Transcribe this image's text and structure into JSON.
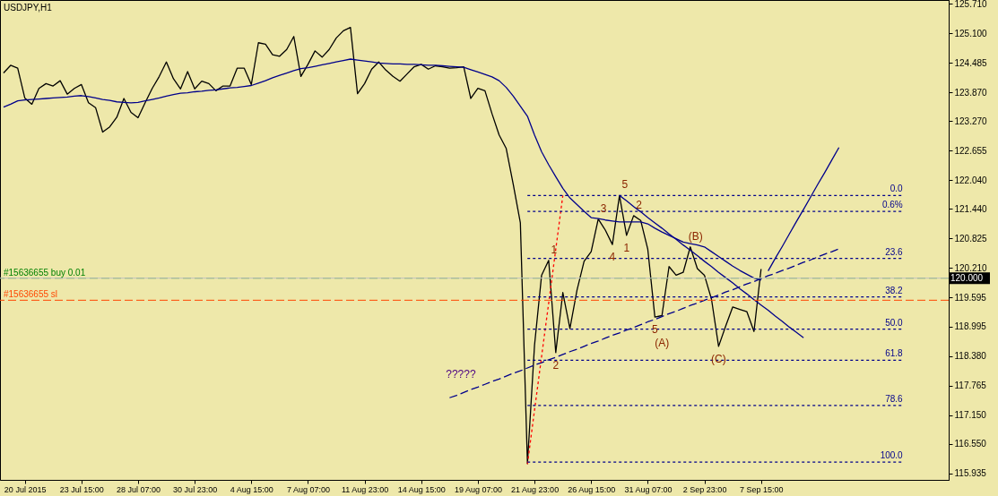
{
  "chart_data": {
    "type": "line",
    "title": "USDJPY,H1",
    "categories": [
      null,
      null,
      null,
      "20 Jul 2015",
      null,
      null,
      null,
      null,
      null,
      null,
      null,
      "23 Jul 15:00",
      null,
      null,
      null,
      null,
      null,
      null,
      null,
      "28 Jul 07:00",
      null,
      null,
      null,
      null,
      null,
      null,
      null,
      "30 Jul 23:00",
      null,
      null,
      null,
      null,
      null,
      null,
      null,
      "4 Aug 15:00",
      null,
      null,
      null,
      null,
      null,
      null,
      null,
      "7 Aug 07:00",
      null,
      null,
      null,
      null,
      null,
      null,
      null,
      "11 Aug 23:00",
      null,
      null,
      null,
      null,
      null,
      null,
      null,
      "14 Aug 15:00",
      null,
      null,
      null,
      null,
      null,
      null,
      null,
      "19 Aug 07:00",
      null,
      null,
      null,
      null,
      null,
      null,
      null,
      "21 Aug 23:00",
      null,
      null,
      null,
      null,
      null,
      null,
      null,
      "26 Aug 15:00",
      null,
      null,
      null,
      null,
      null,
      null,
      null,
      "31 Aug 07:00",
      null,
      null,
      null,
      null,
      null,
      null,
      null,
      "2 Sep 23:00",
      null,
      null,
      null,
      null,
      null,
      null,
      null,
      "7 Sep 15:00",
      null,
      null,
      null,
      null,
      null,
      null,
      null,
      null,
      null,
      null,
      null,
      null,
      null,
      null,
      null,
      null,
      null,
      null,
      null,
      null,
      null,
      null,
      null,
      null,
      null,
      null
    ],
    "ylim": [
      115.8,
      125.79
    ],
    "yticks": [
      {
        "value": 125.71,
        "label": "125.710"
      },
      {
        "value": 125.1,
        "label": "125.100"
      },
      {
        "value": 124.485,
        "label": "124.485"
      },
      {
        "value": 123.87,
        "label": "123.870"
      },
      {
        "value": 123.27,
        "label": "123.270"
      },
      {
        "value": 122.655,
        "label": "122.655"
      },
      {
        "value": 122.04,
        "label": "122.040"
      },
      {
        "value": 121.44,
        "label": "121.440"
      },
      {
        "value": 120.825,
        "label": "120.825"
      },
      {
        "value": 120.21,
        "label": "120.210"
      },
      {
        "value": 119.595,
        "label": "119.595"
      },
      {
        "value": 118.995,
        "label": "118.995"
      },
      {
        "value": 118.38,
        "label": "118.380"
      },
      {
        "value": 117.765,
        "label": "117.765"
      },
      {
        "value": 117.15,
        "label": "117.150"
      },
      {
        "value": 116.55,
        "label": "116.550"
      },
      {
        "value": 115.935,
        "label": "115.935"
      }
    ],
    "series": [
      {
        "color": "#000000",
        "values": [
          124.27,
          124.43,
          124.37,
          123.75,
          123.62,
          123.95,
          124.05,
          124.0,
          124.11,
          123.83,
          123.95,
          124.03,
          123.65,
          123.55,
          123.04,
          123.15,
          123.35,
          123.74,
          123.45,
          123.34,
          123.65,
          123.95,
          124.2,
          124.5,
          124.15,
          123.94,
          124.3,
          123.94,
          124.1,
          124.05,
          123.9,
          124.0,
          124.0,
          124.37,
          124.37,
          124.03,
          124.9,
          124.87,
          124.65,
          124.62,
          124.76,
          125.03,
          124.2,
          124.45,
          124.73,
          124.6,
          124.76,
          125.0,
          125.15,
          125.22,
          123.84,
          124.05,
          124.35,
          124.5,
          124.33,
          124.2,
          124.1,
          124.25,
          124.4,
          124.45,
          124.35,
          124.42,
          124.4,
          124.37,
          124.38,
          124.4,
          123.74,
          123.95,
          123.9,
          123.42,
          122.98,
          122.7,
          121.95,
          121.15,
          116.14,
          118.6,
          120.06,
          120.37,
          118.45,
          119.7,
          118.95,
          119.75,
          120.35,
          120.55,
          121.23,
          121.0,
          120.7,
          121.72,
          120.89,
          121.3,
          121.2,
          120.6,
          119.19,
          119.22,
          120.24,
          120.06,
          120.12,
          120.65,
          120.2,
          120.06,
          119.56,
          118.58,
          119.0,
          119.4,
          119.35,
          119.3,
          118.89,
          120.19,
          null,
          null,
          null,
          null,
          null,
          null,
          null,
          null,
          null,
          null,
          null,
          null,
          null,
          null,
          null,
          null,
          null,
          null,
          null,
          null,
          null,
          null,
          null,
          null,
          null,
          null
        ]
      },
      {
        "color": "#00008b",
        "values": [
          123.56,
          123.62,
          123.69,
          123.71,
          123.72,
          123.73,
          123.74,
          123.75,
          123.76,
          123.77,
          123.79,
          123.8,
          123.78,
          123.75,
          123.72,
          123.7,
          123.67,
          123.66,
          123.65,
          123.66,
          123.69,
          123.72,
          123.75,
          123.79,
          123.82,
          123.85,
          123.86,
          123.88,
          123.89,
          123.91,
          123.92,
          123.94,
          123.96,
          123.97,
          123.99,
          124.01,
          124.06,
          124.11,
          124.17,
          124.22,
          124.27,
          124.32,
          124.36,
          124.38,
          124.41,
          124.44,
          124.47,
          124.5,
          124.53,
          124.56,
          124.54,
          124.52,
          124.5,
          124.48,
          124.47,
          124.46,
          124.46,
          124.45,
          124.45,
          124.44,
          124.43,
          124.43,
          124.42,
          124.41,
          124.4,
          124.39,
          124.34,
          124.29,
          124.24,
          124.19,
          124.11,
          123.97,
          123.79,
          123.58,
          123.37,
          122.98,
          122.63,
          122.36,
          122.11,
          121.87,
          121.67,
          121.53,
          121.39,
          121.26,
          121.24,
          121.21,
          121.19,
          121.17,
          121.17,
          121.17,
          121.17,
          121.13,
          121.04,
          120.96,
          120.89,
          120.82,
          120.75,
          120.72,
          120.69,
          120.65,
          120.55,
          120.45,
          120.35,
          120.25,
          120.16,
          120.08,
          120.0,
          119.96,
          null,
          null,
          null,
          null,
          null,
          null,
          null,
          null,
          null,
          null,
          null,
          null,
          null,
          null,
          null,
          null,
          null,
          null,
          null,
          null,
          null,
          null,
          null,
          null,
          null,
          null
        ]
      },
      {
        "color": "#00008b",
        "line_style": "dashed",
        "values": [
          null,
          null,
          null,
          null,
          null,
          null,
          null,
          null,
          null,
          null,
          null,
          null,
          null,
          null,
          null,
          null,
          null,
          null,
          null,
          null,
          null,
          null,
          null,
          null,
          null,
          null,
          null,
          null,
          null,
          null,
          null,
          null,
          null,
          null,
          null,
          null,
          null,
          null,
          null,
          null,
          null,
          null,
          null,
          null,
          null,
          null,
          null,
          null,
          null,
          null,
          null,
          null,
          null,
          null,
          null,
          null,
          null,
          null,
          null,
          null,
          null,
          null,
          null,
          117.51,
          117.56,
          117.62,
          117.68,
          117.73,
          117.79,
          117.85,
          117.9,
          117.96,
          118.02,
          118.07,
          118.13,
          118.19,
          118.24,
          118.3,
          118.35,
          118.41,
          118.47,
          118.52,
          118.58,
          118.64,
          118.69,
          118.75,
          118.81,
          118.86,
          118.92,
          118.97,
          119.03,
          119.09,
          119.14,
          119.2,
          119.26,
          119.31,
          119.37,
          119.43,
          119.48,
          119.54,
          119.59,
          119.65,
          119.71,
          119.76,
          119.82,
          119.88,
          119.93,
          119.99,
          120.05,
          120.1,
          120.16,
          120.21,
          120.27,
          120.33,
          120.38,
          120.44,
          120.5,
          120.55,
          120.61,
          null,
          null,
          null,
          null,
          null,
          null,
          null,
          null,
          null,
          null,
          null,
          null,
          null,
          null,
          null
        ]
      },
      {
        "color": "#00008b",
        "values": [
          null,
          null,
          null,
          null,
          null,
          null,
          null,
          null,
          null,
          null,
          null,
          null,
          null,
          null,
          null,
          null,
          null,
          null,
          null,
          null,
          null,
          null,
          null,
          null,
          null,
          null,
          null,
          null,
          null,
          null,
          null,
          null,
          null,
          null,
          null,
          null,
          null,
          null,
          null,
          null,
          null,
          null,
          null,
          null,
          null,
          null,
          null,
          null,
          null,
          null,
          null,
          null,
          null,
          null,
          null,
          null,
          null,
          null,
          null,
          null,
          null,
          null,
          null,
          null,
          null,
          null,
          null,
          null,
          null,
          null,
          null,
          null,
          null,
          null,
          null,
          null,
          null,
          null,
          null,
          null,
          null,
          null,
          null,
          null,
          null,
          null,
          null,
          121.72,
          121.61,
          121.49,
          121.38,
          121.26,
          121.15,
          121.04,
          120.92,
          120.81,
          120.69,
          120.58,
          120.47,
          120.35,
          120.24,
          120.12,
          120.01,
          119.9,
          119.78,
          119.67,
          119.55,
          119.44,
          119.33,
          119.21,
          119.1,
          118.98,
          118.87,
          118.76,
          null,
          null,
          null,
          null,
          null,
          null,
          null,
          null,
          null,
          null,
          null,
          null,
          null,
          null,
          null,
          null,
          null,
          null,
          null,
          null
        ]
      },
      {
        "color": "#00008b",
        "values": [
          null,
          null,
          null,
          null,
          null,
          null,
          null,
          null,
          null,
          null,
          null,
          null,
          null,
          null,
          null,
          null,
          null,
          null,
          null,
          null,
          null,
          null,
          null,
          null,
          null,
          null,
          null,
          null,
          null,
          null,
          null,
          null,
          null,
          null,
          null,
          null,
          null,
          null,
          null,
          null,
          null,
          null,
          null,
          null,
          null,
          null,
          null,
          null,
          null,
          null,
          null,
          null,
          null,
          null,
          null,
          null,
          null,
          null,
          null,
          null,
          null,
          null,
          null,
          null,
          null,
          null,
          null,
          null,
          null,
          null,
          null,
          null,
          null,
          null,
          null,
          null,
          null,
          null,
          null,
          null,
          null,
          null,
          null,
          null,
          null,
          null,
          null,
          null,
          null,
          null,
          null,
          null,
          null,
          null,
          null,
          null,
          null,
          null,
          null,
          null,
          null,
          null,
          null,
          null,
          null,
          null,
          null,
          null,
          120.15,
          120.41,
          120.66,
          120.92,
          121.18,
          121.43,
          121.69,
          121.95,
          122.2,
          122.46,
          122.72,
          null,
          null,
          null,
          null,
          null,
          null,
          null,
          null,
          null,
          null,
          null,
          null,
          null,
          null,
          null
        ]
      },
      {
        "color": "#ff0000",
        "line_style": "dotted",
        "values": [
          null,
          null,
          null,
          null,
          null,
          null,
          null,
          null,
          null,
          null,
          null,
          null,
          null,
          null,
          null,
          null,
          null,
          null,
          null,
          null,
          null,
          null,
          null,
          null,
          null,
          null,
          null,
          null,
          null,
          null,
          null,
          null,
          null,
          null,
          null,
          null,
          null,
          null,
          null,
          null,
          null,
          null,
          null,
          null,
          null,
          null,
          null,
          null,
          null,
          null,
          null,
          null,
          null,
          null,
          null,
          null,
          null,
          null,
          null,
          null,
          null,
          null,
          null,
          null,
          null,
          null,
          null,
          null,
          null,
          null,
          null,
          null,
          null,
          null,
          116.13,
          117.25,
          118.37,
          119.48,
          120.6,
          121.72,
          null,
          null,
          null,
          null,
          null,
          null,
          null,
          null,
          null,
          null,
          null,
          null,
          null,
          null,
          null,
          null,
          null,
          null,
          null,
          null,
          null,
          null,
          null,
          null,
          null,
          null,
          null,
          null,
          null,
          null,
          null,
          null,
          null,
          null,
          null,
          null,
          null,
          null,
          null,
          null,
          null,
          null,
          null,
          null,
          null,
          null,
          null,
          null,
          null,
          null,
          null,
          null,
          null,
          null
        ]
      },
      {
        "name": "0.0",
        "color": "#00008b",
        "line_style": "dotted",
        "values": [
          null,
          null,
          null,
          null,
          null,
          null,
          null,
          null,
          null,
          null,
          null,
          null,
          null,
          null,
          null,
          null,
          null,
          null,
          null,
          null,
          null,
          null,
          null,
          null,
          null,
          null,
          null,
          null,
          null,
          null,
          null,
          null,
          null,
          null,
          null,
          null,
          null,
          null,
          null,
          null,
          null,
          null,
          null,
          null,
          null,
          null,
          null,
          null,
          null,
          null,
          null,
          null,
          null,
          null,
          null,
          null,
          null,
          null,
          null,
          null,
          null,
          null,
          null,
          null,
          null,
          null,
          null,
          null,
          null,
          null,
          null,
          null,
          null,
          null,
          121.72,
          121.72,
          121.72,
          121.72,
          121.72,
          121.72,
          121.72,
          121.72,
          121.72,
          121.72,
          121.72,
          121.72,
          121.72,
          121.72,
          121.72,
          121.72,
          121.72,
          121.72,
          121.72,
          121.72,
          121.72,
          121.72,
          121.72,
          121.72,
          121.72,
          121.72,
          121.72,
          121.72,
          121.72,
          121.72,
          121.72,
          121.72,
          121.72,
          121.72,
          121.72,
          121.72,
          121.72,
          121.72,
          121.72,
          121.72,
          121.72,
          121.72,
          121.72,
          121.72,
          121.72,
          121.72,
          121.72,
          121.72,
          121.72,
          121.72,
          121.72,
          121.72,
          121.72,
          121.72,
          null,
          null,
          null,
          null,
          null,
          null
        ]
      },
      {
        "name": "0.6%",
        "color": "#00008b",
        "line_style": "dotted",
        "values": [
          null,
          null,
          null,
          null,
          null,
          null,
          null,
          null,
          null,
          null,
          null,
          null,
          null,
          null,
          null,
          null,
          null,
          null,
          null,
          null,
          null,
          null,
          null,
          null,
          null,
          null,
          null,
          null,
          null,
          null,
          null,
          null,
          null,
          null,
          null,
          null,
          null,
          null,
          null,
          null,
          null,
          null,
          null,
          null,
          null,
          null,
          null,
          null,
          null,
          null,
          null,
          null,
          null,
          null,
          null,
          null,
          null,
          null,
          null,
          null,
          null,
          null,
          null,
          null,
          null,
          null,
          null,
          null,
          null,
          null,
          null,
          null,
          null,
          null,
          121.39,
          121.39,
          121.39,
          121.39,
          121.39,
          121.39,
          121.39,
          121.39,
          121.39,
          121.39,
          121.39,
          121.39,
          121.39,
          121.39,
          121.39,
          121.39,
          121.39,
          121.39,
          121.39,
          121.39,
          121.39,
          121.39,
          121.39,
          121.39,
          121.39,
          121.39,
          121.39,
          121.39,
          121.39,
          121.39,
          121.39,
          121.39,
          121.39,
          121.39,
          121.39,
          121.39,
          121.39,
          121.39,
          121.39,
          121.39,
          121.39,
          121.39,
          121.39,
          121.39,
          121.39,
          121.39,
          121.39,
          121.39,
          121.39,
          121.39,
          121.39,
          121.39,
          121.39,
          121.39,
          null,
          null,
          null,
          null,
          null,
          null
        ]
      },
      {
        "name": "23.6",
        "color": "#00008b",
        "line_style": "dotted",
        "values": [
          null,
          null,
          null,
          null,
          null,
          null,
          null,
          null,
          null,
          null,
          null,
          null,
          null,
          null,
          null,
          null,
          null,
          null,
          null,
          null,
          null,
          null,
          null,
          null,
          null,
          null,
          null,
          null,
          null,
          null,
          null,
          null,
          null,
          null,
          null,
          null,
          null,
          null,
          null,
          null,
          null,
          null,
          null,
          null,
          null,
          null,
          null,
          null,
          null,
          null,
          null,
          null,
          null,
          null,
          null,
          null,
          null,
          null,
          null,
          null,
          null,
          null,
          null,
          null,
          null,
          null,
          null,
          null,
          null,
          null,
          null,
          null,
          null,
          null,
          120.41,
          120.41,
          120.41,
          120.41,
          120.41,
          120.41,
          120.41,
          120.41,
          120.41,
          120.41,
          120.41,
          120.41,
          120.41,
          120.41,
          120.41,
          120.41,
          120.41,
          120.41,
          120.41,
          120.41,
          120.41,
          120.41,
          120.41,
          120.41,
          120.41,
          120.41,
          120.41,
          120.41,
          120.41,
          120.41,
          120.41,
          120.41,
          120.41,
          120.41,
          120.41,
          120.41,
          120.41,
          120.41,
          120.41,
          120.41,
          120.41,
          120.41,
          120.41,
          120.41,
          120.41,
          120.41,
          120.41,
          120.41,
          120.41,
          120.41,
          120.41,
          120.41,
          120.41,
          120.41,
          null,
          null,
          null,
          null,
          null,
          null
        ]
      },
      {
        "name": "38.2",
        "color": "#00008b",
        "line_style": "dotted",
        "values": [
          null,
          null,
          null,
          null,
          null,
          null,
          null,
          null,
          null,
          null,
          null,
          null,
          null,
          null,
          null,
          null,
          null,
          null,
          null,
          null,
          null,
          null,
          null,
          null,
          null,
          null,
          null,
          null,
          null,
          null,
          null,
          null,
          null,
          null,
          null,
          null,
          null,
          null,
          null,
          null,
          null,
          null,
          null,
          null,
          null,
          null,
          null,
          null,
          null,
          null,
          null,
          null,
          null,
          null,
          null,
          null,
          null,
          null,
          null,
          null,
          null,
          null,
          null,
          null,
          null,
          null,
          null,
          null,
          null,
          null,
          null,
          null,
          null,
          null,
          119.61,
          119.61,
          119.61,
          119.61,
          119.61,
          119.61,
          119.61,
          119.61,
          119.61,
          119.61,
          119.61,
          119.61,
          119.61,
          119.61,
          119.61,
          119.61,
          119.61,
          119.61,
          119.61,
          119.61,
          119.61,
          119.61,
          119.61,
          119.61,
          119.61,
          119.61,
          119.61,
          119.61,
          119.61,
          119.61,
          119.61,
          119.61,
          119.61,
          119.61,
          119.61,
          119.61,
          119.61,
          119.61,
          119.61,
          119.61,
          119.61,
          119.61,
          119.61,
          119.61,
          119.61,
          119.61,
          119.61,
          119.61,
          119.61,
          119.61,
          119.61,
          119.61,
          119.61,
          119.61,
          null,
          null,
          null,
          null,
          null,
          null
        ]
      },
      {
        "name": "50.0",
        "color": "#00008b",
        "line_style": "dotted",
        "values": [
          null,
          null,
          null,
          null,
          null,
          null,
          null,
          null,
          null,
          null,
          null,
          null,
          null,
          null,
          null,
          null,
          null,
          null,
          null,
          null,
          null,
          null,
          null,
          null,
          null,
          null,
          null,
          null,
          null,
          null,
          null,
          null,
          null,
          null,
          null,
          null,
          null,
          null,
          null,
          null,
          null,
          null,
          null,
          null,
          null,
          null,
          null,
          null,
          null,
          null,
          null,
          null,
          null,
          null,
          null,
          null,
          null,
          null,
          null,
          null,
          null,
          null,
          null,
          null,
          null,
          null,
          null,
          null,
          null,
          null,
          null,
          null,
          null,
          null,
          118.94,
          118.94,
          118.94,
          118.94,
          118.94,
          118.94,
          118.94,
          118.94,
          118.94,
          118.94,
          118.94,
          118.94,
          118.94,
          118.94,
          118.94,
          118.94,
          118.94,
          118.94,
          118.94,
          118.94,
          118.94,
          118.94,
          118.94,
          118.94,
          118.94,
          118.94,
          118.94,
          118.94,
          118.94,
          118.94,
          118.94,
          118.94,
          118.94,
          118.94,
          118.94,
          118.94,
          118.94,
          118.94,
          118.94,
          118.94,
          118.94,
          118.94,
          118.94,
          118.94,
          118.94,
          118.94,
          118.94,
          118.94,
          118.94,
          118.94,
          118.94,
          118.94,
          118.94,
          118.94,
          null,
          null,
          null,
          null,
          null,
          null
        ]
      },
      {
        "name": "61.8",
        "color": "#00008b",
        "line_style": "dotted",
        "values": [
          null,
          null,
          null,
          null,
          null,
          null,
          null,
          null,
          null,
          null,
          null,
          null,
          null,
          null,
          null,
          null,
          null,
          null,
          null,
          null,
          null,
          null,
          null,
          null,
          null,
          null,
          null,
          null,
          null,
          null,
          null,
          null,
          null,
          null,
          null,
          null,
          null,
          null,
          null,
          null,
          null,
          null,
          null,
          null,
          null,
          null,
          null,
          null,
          null,
          null,
          null,
          null,
          null,
          null,
          null,
          null,
          null,
          null,
          null,
          null,
          null,
          null,
          null,
          null,
          null,
          null,
          null,
          null,
          null,
          null,
          null,
          null,
          null,
          null,
          118.29,
          118.29,
          118.29,
          118.29,
          118.29,
          118.29,
          118.29,
          118.29,
          118.29,
          118.29,
          118.29,
          118.29,
          118.29,
          118.29,
          118.29,
          118.29,
          118.29,
          118.29,
          118.29,
          118.29,
          118.29,
          118.29,
          118.29,
          118.29,
          118.29,
          118.29,
          118.29,
          118.29,
          118.29,
          118.29,
          118.29,
          118.29,
          118.29,
          118.29,
          118.29,
          118.29,
          118.29,
          118.29,
          118.29,
          118.29,
          118.29,
          118.29,
          118.29,
          118.29,
          118.29,
          118.29,
          118.29,
          118.29,
          118.29,
          118.29,
          118.29,
          118.29,
          118.29,
          118.29,
          null,
          null,
          null,
          null,
          null,
          null
        ]
      },
      {
        "name": "78.6",
        "color": "#00008b",
        "line_style": "dotted",
        "values": [
          null,
          null,
          null,
          null,
          null,
          null,
          null,
          null,
          null,
          null,
          null,
          null,
          null,
          null,
          null,
          null,
          null,
          null,
          null,
          null,
          null,
          null,
          null,
          null,
          null,
          null,
          null,
          null,
          null,
          null,
          null,
          null,
          null,
          null,
          null,
          null,
          null,
          null,
          null,
          null,
          null,
          null,
          null,
          null,
          null,
          null,
          null,
          null,
          null,
          null,
          null,
          null,
          null,
          null,
          null,
          null,
          null,
          null,
          null,
          null,
          null,
          null,
          null,
          null,
          null,
          null,
          null,
          null,
          null,
          null,
          null,
          null,
          null,
          null,
          117.35,
          117.35,
          117.35,
          117.35,
          117.35,
          117.35,
          117.35,
          117.35,
          117.35,
          117.35,
          117.35,
          117.35,
          117.35,
          117.35,
          117.35,
          117.35,
          117.35,
          117.35,
          117.35,
          117.35,
          117.35,
          117.35,
          117.35,
          117.35,
          117.35,
          117.35,
          117.35,
          117.35,
          117.35,
          117.35,
          117.35,
          117.35,
          117.35,
          117.35,
          117.35,
          117.35,
          117.35,
          117.35,
          117.35,
          117.35,
          117.35,
          117.35,
          117.35,
          117.35,
          117.35,
          117.35,
          117.35,
          117.35,
          117.35,
          117.35,
          117.35,
          117.35,
          117.35,
          117.35,
          null,
          null,
          null,
          null,
          null,
          null
        ]
      },
      {
        "name": "100.0",
        "color": "#00008b",
        "line_style": "dotted",
        "values": [
          null,
          null,
          null,
          null,
          null,
          null,
          null,
          null,
          null,
          null,
          null,
          null,
          null,
          null,
          null,
          null,
          null,
          null,
          null,
          null,
          null,
          null,
          null,
          null,
          null,
          null,
          null,
          null,
          null,
          null,
          null,
          null,
          null,
          null,
          null,
          null,
          null,
          null,
          null,
          null,
          null,
          null,
          null,
          null,
          null,
          null,
          null,
          null,
          null,
          null,
          null,
          null,
          null,
          null,
          null,
          null,
          null,
          null,
          null,
          null,
          null,
          null,
          null,
          null,
          null,
          null,
          null,
          null,
          null,
          null,
          null,
          null,
          null,
          null,
          116.17,
          116.17,
          116.17,
          116.17,
          116.17,
          116.17,
          116.17,
          116.17,
          116.17,
          116.17,
          116.17,
          116.17,
          116.17,
          116.17,
          116.17,
          116.17,
          116.17,
          116.17,
          116.17,
          116.17,
          116.17,
          116.17,
          116.17,
          116.17,
          116.17,
          116.17,
          116.17,
          116.17,
          116.17,
          116.17,
          116.17,
          116.17,
          116.17,
          116.17,
          116.17,
          116.17,
          116.17,
          116.17,
          116.17,
          116.17,
          116.17,
          116.17,
          116.17,
          116.17,
          116.17,
          116.17,
          116.17,
          116.17,
          116.17,
          116.17,
          116.17,
          116.17,
          116.17,
          116.17,
          null,
          null,
          null,
          null,
          null,
          null
        ]
      }
    ],
    "ref_lines": [
      {
        "axis": "y",
        "value": 120.0,
        "label": "#15636655 buy 0.01",
        "color": "#008000",
        "line_style": "dashed"
      },
      {
        "axis": "y",
        "value": 119.54,
        "label": "#15636655 sl",
        "color": "#ff4500",
        "line_style": "dashed"
      },
      {
        "axis": "y",
        "value": 120.0,
        "label": "120.000",
        "color": "#c0c0c0",
        "line_style": "solid"
      }
    ],
    "annotations": [
      {
        "text": "1",
        "y": 120.37
      },
      {
        "text": "2",
        "y": 118.45
      },
      {
        "text": "3",
        "y": 121.23
      },
      {
        "text": "4",
        "y": 120.7
      },
      {
        "text": "5",
        "y": 121.72
      },
      {
        "text": "1",
        "y": 120.89
      },
      {
        "text": "2",
        "y": 121.3
      },
      {
        "text": "5",
        "y": 119.19
      },
      {
        "text": "(A)",
        "y": 119.22
      },
      {
        "text": "(B)",
        "y": 120.65
      },
      {
        "text": "(C)",
        "y": 118.58
      },
      "?????"
    ]
  }
}
